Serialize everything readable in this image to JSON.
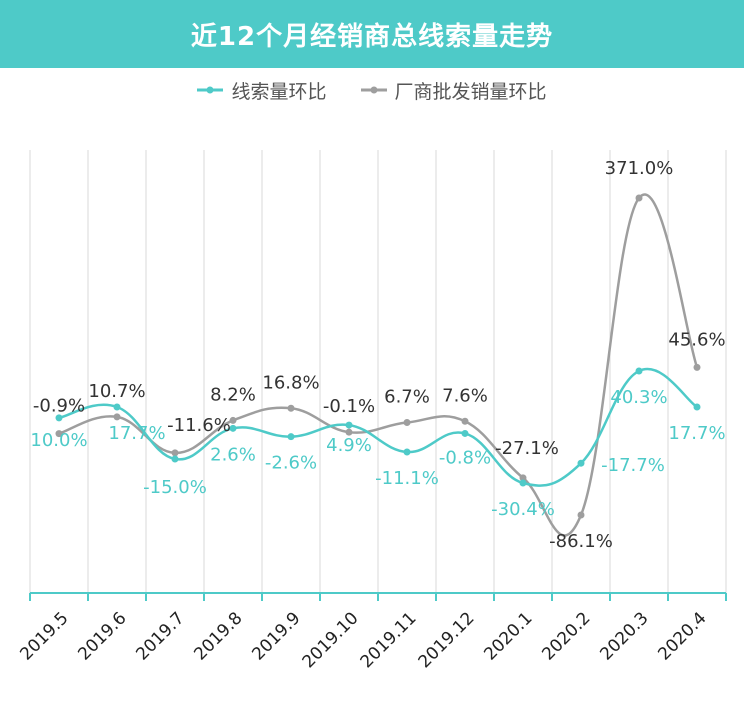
{
  "header": {
    "title": "近12个月经销商总线索量走势"
  },
  "colors": {
    "header_bg": "#4ecac8",
    "leads": "#4ecac8",
    "wholesale": "#9e9e9e",
    "leads_label": "#4ecac8",
    "wholesale_label": "#333333",
    "grid": "#d9d9d9",
    "axis": "#4ecac8"
  },
  "chart_data": {
    "type": "line",
    "categories": [
      "2019.5",
      "2019.6",
      "2019.7",
      "2019.8",
      "2019.9",
      "2019.10",
      "2019.11",
      "2019.12",
      "2020.1",
      "2020.2",
      "2020.3",
      "2020.4"
    ],
    "series": [
      {
        "name": "线索量环比",
        "values": [
          10.0,
          17.7,
          -15.0,
          2.6,
          -2.6,
          4.9,
          -11.1,
          -0.8,
          -30.4,
          -17.7,
          40.3,
          17.7
        ],
        "labels": [
          "10.0%",
          "17.7%",
          "-15.0%",
          "2.6%",
          "-2.6%",
          "4.9%",
          "-11.1%",
          "-0.8%",
          "-30.4%",
          "-17.7%",
          "40.3%",
          "17.7%"
        ],
        "smooth": true
      },
      {
        "name": "厂商批发销量环比",
        "values": [
          -0.9,
          10.7,
          -11.6,
          8.2,
          16.8,
          -0.1,
          6.7,
          7.6,
          -27.1,
          -86.1,
          371.0,
          45.6
        ],
        "labels": [
          "-0.9%",
          "10.7%",
          "-11.6%",
          "8.2%",
          "16.8%",
          "-0.1%",
          "6.7%",
          "7.6%",
          "-27.1%",
          "-86.1%",
          "371.0%",
          "45.6%"
        ],
        "smooth": true
      }
    ],
    "xlabel": "",
    "ylabel": "",
    "y_axis_visible": false,
    "legend": "top-center",
    "grid": "vertical"
  }
}
